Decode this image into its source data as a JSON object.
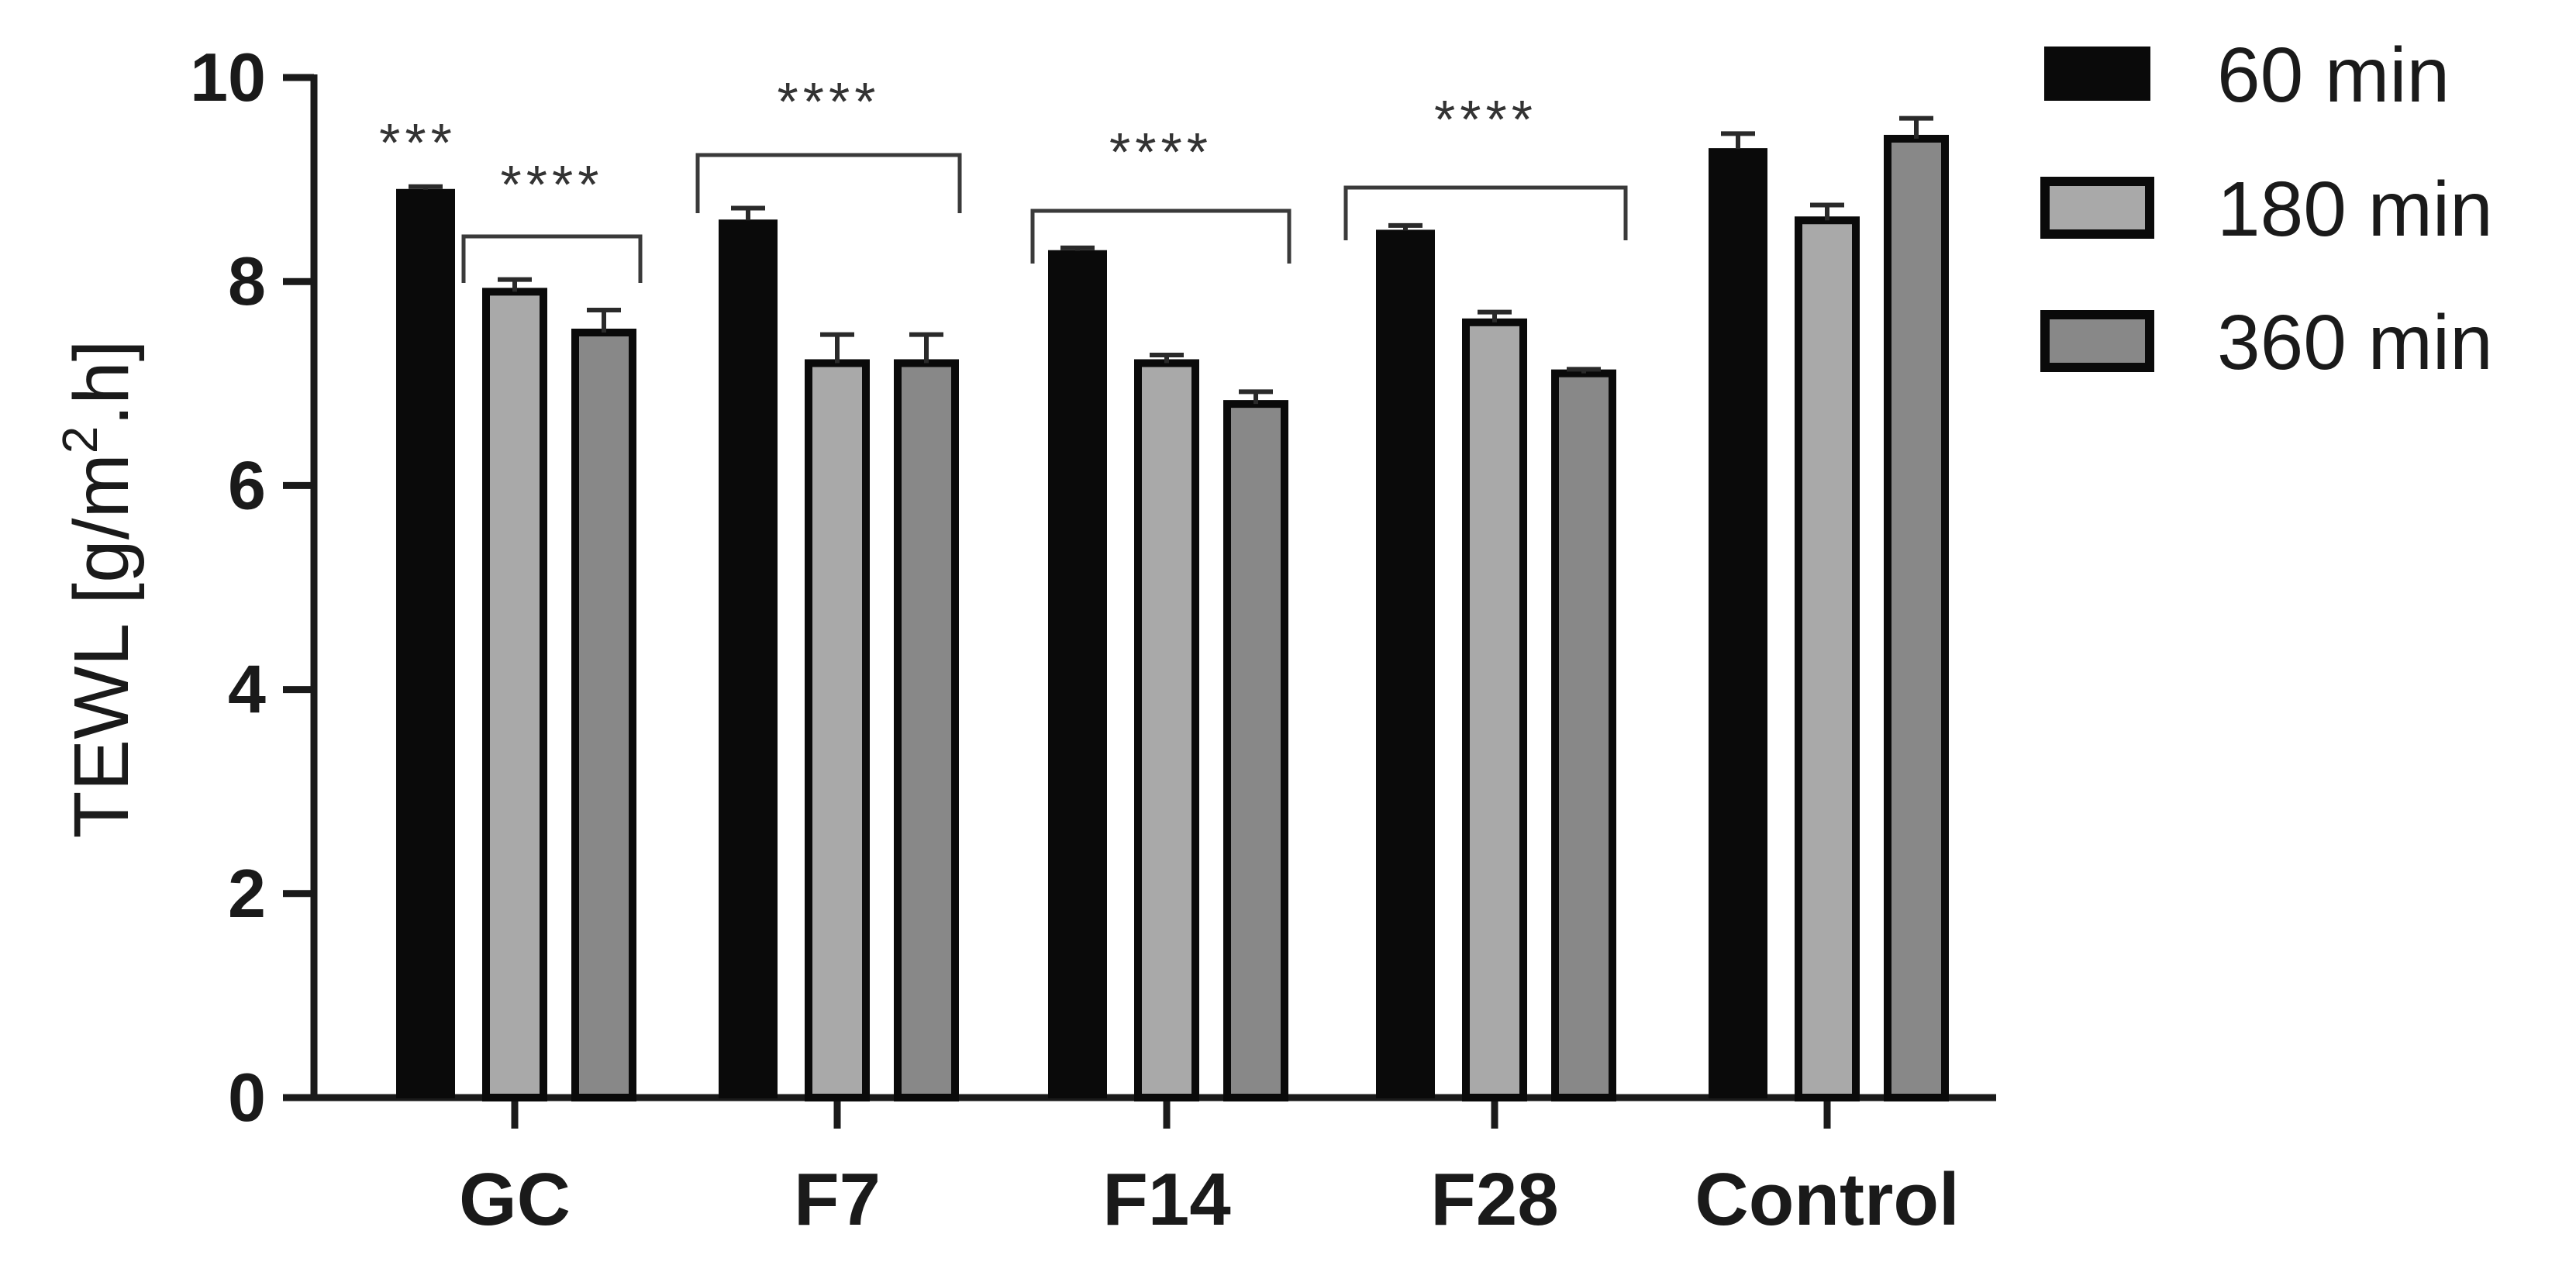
{
  "chart_data": {
    "type": "bar",
    "categories": [
      "GC",
      "F7",
      "F14",
      "F28",
      "Control"
    ],
    "series": [
      {
        "name": "60 min",
        "values": [
          8.9,
          8.6,
          8.3,
          8.5,
          9.3
        ],
        "errors": [
          0.03,
          0.12,
          0.03,
          0.05,
          0.15
        ],
        "color": "#0a0a0a"
      },
      {
        "name": "180 min",
        "values": [
          7.9,
          7.2,
          7.2,
          7.6,
          8.6
        ],
        "errors": [
          0.12,
          0.28,
          0.08,
          0.1,
          0.15
        ],
        "color": "#a9a9a9"
      },
      {
        "name": "360 min",
        "values": [
          7.5,
          7.2,
          6.8,
          7.1,
          9.4
        ],
        "errors": [
          0.22,
          0.28,
          0.12,
          0.04,
          0.2
        ],
        "color": "#888888"
      }
    ],
    "ylabel_main": "TEWL [g/m",
    "ylabel_sup": "2",
    "ylabel_end": ".h]",
    "ylim": [
      0,
      10
    ],
    "yticks": [
      "0",
      "2",
      "4",
      "6",
      "8",
      "10"
    ],
    "legend_position": "top-right",
    "grid": false,
    "annotations": [
      {
        "text": "***",
        "category": "GC",
        "kind": "above-bar"
      },
      {
        "text": "****",
        "category": "GC",
        "kind": "bracket"
      },
      {
        "text": "****",
        "category": "F7",
        "kind": "bracket"
      },
      {
        "text": "****",
        "category": "F14",
        "kind": "bracket"
      },
      {
        "text": "****",
        "category": "F28",
        "kind": "bracket"
      }
    ]
  }
}
